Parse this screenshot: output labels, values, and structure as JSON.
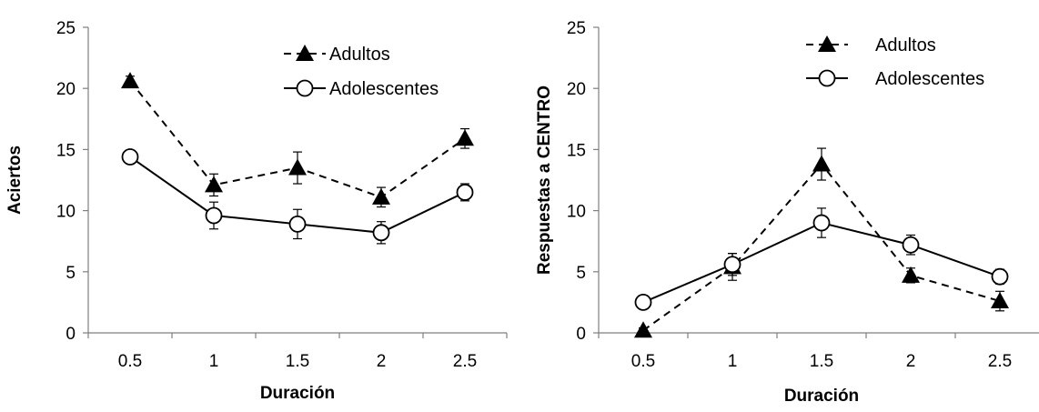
{
  "chart_data": [
    {
      "type": "line",
      "xlabel": "Duración",
      "ylabel": "Aciertos",
      "categories": [
        "0.5",
        "1",
        "1.5",
        "2",
        "2.5"
      ],
      "ylim": [
        0,
        25
      ],
      "yticks": [
        "0",
        "5",
        "10",
        "15",
        "20",
        "25"
      ],
      "legend_position": "top-right",
      "series": [
        {
          "name": "Adultos",
          "marker": "filled-triangle",
          "line": "dashed",
          "values": [
            20.6,
            12.1,
            13.5,
            11.1,
            15.9
          ],
          "errors": [
            0.4,
            0.9,
            1.3,
            0.8,
            0.8
          ]
        },
        {
          "name": "Adolescentes",
          "marker": "open-circle",
          "line": "solid",
          "values": [
            14.4,
            9.6,
            8.9,
            8.2,
            11.5
          ],
          "errors": [
            0.5,
            1.1,
            1.2,
            0.9,
            0.7
          ]
        }
      ]
    },
    {
      "type": "line",
      "xlabel": "Duración",
      "ylabel": "Respuestas a CENTRO",
      "categories": [
        "0.5",
        "1",
        "1.5",
        "2",
        "2.5"
      ],
      "ylim": [
        0,
        25
      ],
      "yticks": [
        "0",
        "5",
        "10",
        "15",
        "20",
        "25"
      ],
      "legend_position": "top-right",
      "series": [
        {
          "name": "Adultos",
          "marker": "filled-triangle",
          "line": "dashed",
          "values": [
            0.2,
            5.4,
            13.8,
            4.7,
            2.6
          ],
          "errors": [
            0.2,
            1.1,
            1.3,
            0.6,
            0.8
          ]
        },
        {
          "name": "Adolescentes",
          "marker": "open-circle",
          "line": "solid",
          "values": [
            2.5,
            5.6,
            9.0,
            7.2,
            4.6
          ],
          "errors": [
            0.3,
            0.9,
            1.2,
            0.8,
            0.6
          ]
        }
      ]
    }
  ]
}
